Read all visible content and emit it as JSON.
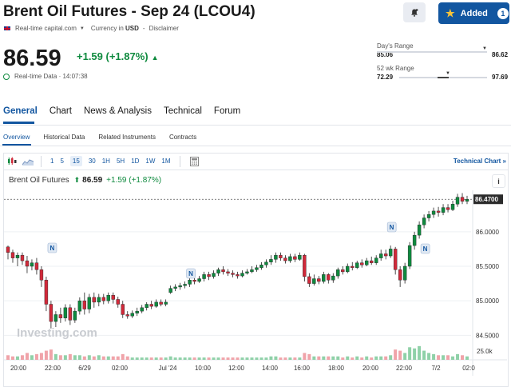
{
  "header": {
    "title": "Brent Oil Futures - Sep 24 (LCOU4)",
    "added_label": "Added",
    "added_count": "1"
  },
  "meta": {
    "source": "Real-time capital.com",
    "currency_label": "Currency in",
    "currency": "USD",
    "separator": "-",
    "disclaimer": "Disclaimer"
  },
  "quote": {
    "price": "86.59",
    "change": "+1.59 (+1.87%)",
    "realtime": "Real-time Data · 14:07:38"
  },
  "days_range": {
    "label": "Day's Range",
    "low": "85.06",
    "high": "86.62"
  },
  "wk52_range": {
    "label": "52 wk Range",
    "low": "72.29",
    "high": "97.69"
  },
  "tabs": [
    "General",
    "Chart",
    "News & Analysis",
    "Technical",
    "Forum"
  ],
  "subtabs": [
    "Overview",
    "Historical Data",
    "Related Instruments",
    "Contracts"
  ],
  "timeframes": [
    "1",
    "5",
    "15",
    "30",
    "1H",
    "5H",
    "1D",
    "1W",
    "1M"
  ],
  "active_timeframe": "15",
  "technical_chart_label": "Technical Chart »",
  "chart_header": {
    "name": "Brent Oil Futures",
    "price": "86.59",
    "change": "+1.59 (+1.87%)"
  },
  "info_label": "i",
  "colors": {
    "up": "#0e8a3e",
    "down": "#d1293a",
    "accent": "#1256a0"
  },
  "chart_data": {
    "type": "candlestick",
    "y_ticks": [
      "86.0000",
      "85.5000",
      "85.0000",
      "84.5000"
    ],
    "ylim": [
      84.4,
      86.6
    ],
    "last_price_label": "86.4700",
    "x_ticks": [
      "20:00",
      "22:00",
      "6/29",
      "02:00",
      "Jul '24",
      "10:00",
      "12:00",
      "14:00",
      "16:00",
      "18:00",
      "20:00",
      "22:00",
      "7/2",
      "02:0"
    ],
    "volume_tick": "25.0k",
    "watermark": "Investing.com",
    "news_marker": "N",
    "candles": [
      [
        85.78,
        85.7,
        85.8,
        85.6
      ],
      [
        85.7,
        85.62,
        85.74,
        85.55
      ],
      [
        85.62,
        85.66,
        85.7,
        85.5
      ],
      [
        85.66,
        85.58,
        85.7,
        85.52
      ],
      [
        85.58,
        85.5,
        85.65,
        85.4
      ],
      [
        85.5,
        85.55,
        85.6,
        85.44
      ],
      [
        85.55,
        85.45,
        85.62,
        85.38
      ],
      [
        85.45,
        85.3,
        85.5,
        85.2
      ],
      [
        85.3,
        84.95,
        85.35,
        84.85
      ],
      [
        84.95,
        84.7,
        85.0,
        84.6
      ],
      [
        84.7,
        84.8,
        84.85,
        84.62
      ],
      [
        84.8,
        84.75,
        84.9,
        84.68
      ],
      [
        84.75,
        84.9,
        84.95,
        84.7
      ],
      [
        84.9,
        84.72,
        84.95,
        84.65
      ],
      [
        84.72,
        84.85,
        84.9,
        84.68
      ],
      [
        84.85,
        85.0,
        85.05,
        84.8
      ],
      [
        85.0,
        84.88,
        85.12,
        84.8
      ],
      [
        84.88,
        85.05,
        85.1,
        84.82
      ],
      [
        85.05,
        84.98,
        85.12,
        84.9
      ],
      [
        84.98,
        85.05,
        85.1,
        84.92
      ],
      [
        85.05,
        85.0,
        85.1,
        84.95
      ],
      [
        85.0,
        85.08,
        85.12,
        84.96
      ],
      [
        85.08,
        85.02,
        85.12,
        84.96
      ],
      [
        85.02,
        84.95,
        85.06,
        84.9
      ],
      [
        84.95,
        84.8,
        85.0,
        84.75
      ],
      [
        84.8,
        84.78,
        84.85,
        84.74
      ],
      [
        84.78,
        84.82,
        84.86,
        84.75
      ],
      [
        84.82,
        84.85,
        84.9,
        84.78
      ],
      [
        84.85,
        84.9,
        84.94,
        84.82
      ],
      [
        84.9,
        84.95,
        84.98,
        84.86
      ],
      [
        84.95,
        84.92,
        85.0,
        84.88
      ],
      [
        84.92,
        84.98,
        85.02,
        84.9
      ],
      [
        84.98,
        84.95,
        85.02,
        84.92
      ],
      [
        84.95,
        84.98,
        85.02,
        84.92
      ],
      [
        85.12,
        85.18,
        85.22,
        85.1
      ],
      [
        85.18,
        85.2,
        85.24,
        85.14
      ],
      [
        85.2,
        85.22,
        85.26,
        85.16
      ],
      [
        85.22,
        85.24,
        85.28,
        85.18
      ],
      [
        85.24,
        85.3,
        85.34,
        85.2
      ],
      [
        85.3,
        85.28,
        85.34,
        85.24
      ],
      [
        85.28,
        85.32,
        85.36,
        85.26
      ],
      [
        85.32,
        85.38,
        85.42,
        85.28
      ],
      [
        85.38,
        85.35,
        85.42,
        85.3
      ],
      [
        85.35,
        85.4,
        85.44,
        85.32
      ],
      [
        85.4,
        85.45,
        85.48,
        85.36
      ],
      [
        85.45,
        85.42,
        85.5,
        85.38
      ],
      [
        85.42,
        85.4,
        85.46,
        85.36
      ],
      [
        85.4,
        85.38,
        85.44,
        85.34
      ],
      [
        85.38,
        85.36,
        85.42,
        85.32
      ],
      [
        85.36,
        85.4,
        85.44,
        85.34
      ],
      [
        85.4,
        85.42,
        85.46,
        85.38
      ],
      [
        85.42,
        85.45,
        85.5,
        85.4
      ],
      [
        85.45,
        85.48,
        85.52,
        85.42
      ],
      [
        85.48,
        85.52,
        85.56,
        85.45
      ],
      [
        85.52,
        85.56,
        85.6,
        85.48
      ],
      [
        85.56,
        85.6,
        85.66,
        85.52
      ],
      [
        85.6,
        85.66,
        85.7,
        85.55
      ],
      [
        85.66,
        85.62,
        85.7,
        85.58
      ],
      [
        85.62,
        85.58,
        85.66,
        85.54
      ],
      [
        85.58,
        85.64,
        85.68,
        85.55
      ],
      [
        85.64,
        85.6,
        85.68,
        85.56
      ],
      [
        85.6,
        85.66,
        85.7,
        85.58
      ],
      [
        85.66,
        85.35,
        85.68,
        85.28
      ],
      [
        85.35,
        85.25,
        85.4,
        85.2
      ],
      [
        85.25,
        85.32,
        85.38,
        85.22
      ],
      [
        85.32,
        85.28,
        85.36,
        85.24
      ],
      [
        85.28,
        85.38,
        85.42,
        85.25
      ],
      [
        85.38,
        85.3,
        85.4,
        85.25
      ],
      [
        85.3,
        85.36,
        85.4,
        85.26
      ],
      [
        85.36,
        85.45,
        85.48,
        85.32
      ],
      [
        85.45,
        85.42,
        85.5,
        85.38
      ],
      [
        85.42,
        85.5,
        85.54,
        85.4
      ],
      [
        85.5,
        85.48,
        85.56,
        85.44
      ],
      [
        85.48,
        85.55,
        85.58,
        85.46
      ],
      [
        85.55,
        85.52,
        85.6,
        85.48
      ],
      [
        85.52,
        85.58,
        85.62,
        85.5
      ],
      [
        85.58,
        85.55,
        85.64,
        85.52
      ],
      [
        85.55,
        85.62,
        85.66,
        85.52
      ],
      [
        85.62,
        85.68,
        85.74,
        85.58
      ],
      [
        85.68,
        85.65,
        85.74,
        85.6
      ],
      [
        85.65,
        85.75,
        85.8,
        85.62
      ],
      [
        85.75,
        85.45,
        85.78,
        85.38
      ],
      [
        85.45,
        85.3,
        85.5,
        85.2
      ],
      [
        85.3,
        85.5,
        85.55,
        85.25
      ],
      [
        85.5,
        85.8,
        85.85,
        85.46
      ],
      [
        85.8,
        85.95,
        86.0,
        85.74
      ],
      [
        85.95,
        86.1,
        86.15,
        85.9
      ],
      [
        86.1,
        86.2,
        86.25,
        86.05
      ],
      [
        86.2,
        86.25,
        86.3,
        86.15
      ],
      [
        86.25,
        86.3,
        86.35,
        86.2
      ],
      [
        86.3,
        86.28,
        86.36,
        86.22
      ],
      [
        86.28,
        86.35,
        86.4,
        86.24
      ],
      [
        86.35,
        86.32,
        86.4,
        86.28
      ],
      [
        86.32,
        86.4,
        86.45,
        86.3
      ],
      [
        86.4,
        86.5,
        86.55,
        86.36
      ],
      [
        86.5,
        86.44,
        86.56,
        86.4
      ],
      [
        86.44,
        86.47,
        86.52,
        86.4
      ]
    ],
    "volumes": [
      4,
      3,
      3,
      4,
      6,
      4,
      5,
      6,
      8,
      9,
      5,
      4,
      4,
      5,
      4,
      4,
      3,
      4,
      3,
      4,
      3,
      3,
      3,
      3,
      5,
      3,
      2,
      2,
      2,
      2,
      2,
      2,
      2,
      2,
      3,
      2,
      2,
      2,
      2,
      2,
      2,
      2,
      2,
      2,
      2,
      2,
      2,
      2,
      2,
      2,
      2,
      2,
      2,
      2,
      2,
      3,
      3,
      2,
      2,
      2,
      2,
      2,
      6,
      5,
      3,
      3,
      3,
      3,
      3,
      3,
      2,
      3,
      2,
      3,
      2,
      3,
      2,
      3,
      3,
      3,
      4,
      9,
      8,
      6,
      11,
      10,
      12,
      8,
      6,
      5,
      4,
      4,
      4,
      3,
      5,
      4,
      3
    ]
  }
}
